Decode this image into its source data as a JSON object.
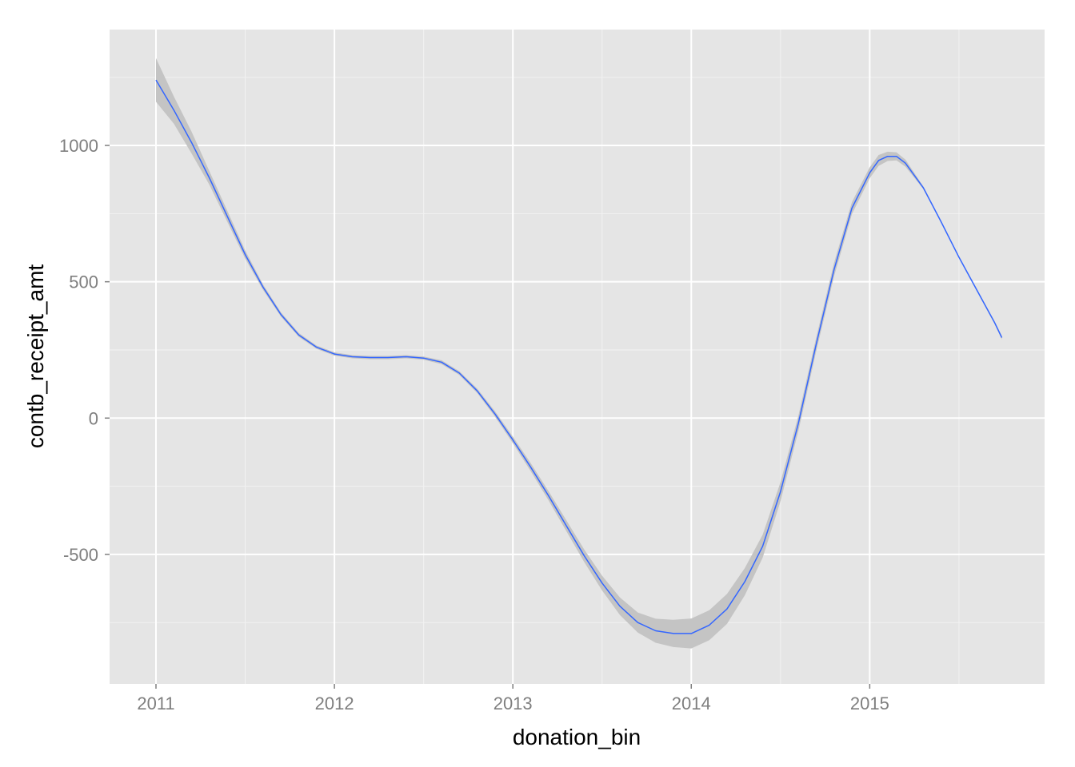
{
  "chart_data": {
    "type": "line",
    "title": "",
    "xlabel": "donation_bin",
    "ylabel": "contb_receipt_amt",
    "xlim": [
      2010.74,
      2015.98
    ],
    "ylim": [
      -975,
      1425
    ],
    "x_ticks": [
      2011,
      2012,
      2013,
      2014,
      2015
    ],
    "y_ticks": [
      -500,
      0,
      500,
      1000
    ],
    "x_tick_labels": [
      "2011",
      "2012",
      "2013",
      "2014",
      "2015"
    ],
    "y_tick_labels": [
      "-500",
      "0",
      "500",
      "1000"
    ],
    "grid": true,
    "legend": "none",
    "colors": {
      "panel_background": "#e5e5e5",
      "grid_major": "#ffffff",
      "grid_minor": "#f2f2f2",
      "line": "#3366ff",
      "ribbon": "#c4c4c4",
      "tick_mark": "#7f7f7f"
    },
    "series": [
      {
        "x": [
          2011.0,
          2011.1,
          2011.2,
          2011.3,
          2011.4,
          2011.5,
          2011.6,
          2011.7,
          2011.8,
          2011.9,
          2012.0,
          2012.1,
          2012.2,
          2012.3,
          2012.4,
          2012.5,
          2012.6,
          2012.7,
          2012.8,
          2012.9,
          2013.0,
          2013.1,
          2013.2,
          2013.3,
          2013.4,
          2013.5,
          2013.6,
          2013.7,
          2013.8,
          2013.9,
          2014.0,
          2014.1,
          2014.2,
          2014.3,
          2014.4,
          2014.5,
          2014.6,
          2014.7,
          2014.8,
          2014.9,
          2015.0,
          2015.05,
          2015.1,
          2015.15,
          2015.2,
          2015.3,
          2015.4,
          2015.5,
          2015.6,
          2015.7,
          2015.74
        ],
        "y": [
          1240,
          1130,
          1010,
          880,
          740,
          600,
          480,
          380,
          305,
          260,
          235,
          225,
          222,
          222,
          225,
          220,
          205,
          165,
          100,
          15,
          -80,
          -180,
          -285,
          -395,
          -505,
          -605,
          -690,
          -750,
          -780,
          -790,
          -790,
          -760,
          -700,
          -600,
          -470,
          -270,
          -20,
          270,
          545,
          770,
          900,
          945,
          960,
          960,
          935,
          845,
          720,
          590,
          470,
          350,
          295
        ],
        "lower": [
          1160,
          1080,
          970,
          855,
          720,
          585,
          470,
          372,
          298,
          254,
          229,
          219,
          216,
          216,
          219,
          214,
          198,
          158,
          92,
          5,
          -92,
          -195,
          -302,
          -415,
          -528,
          -632,
          -722,
          -787,
          -824,
          -840,
          -845,
          -815,
          -755,
          -650,
          -512,
          -305,
          -48,
          245,
          520,
          748,
          880,
          925,
          943,
          945,
          922,
          840,
          717,
          587,
          466,
          345,
          288
        ],
        "upper": [
          1320,
          1180,
          1050,
          905,
          760,
          615,
          490,
          388,
          312,
          266,
          241,
          231,
          228,
          228,
          231,
          226,
          212,
          172,
          108,
          25,
          -68,
          -165,
          -268,
          -375,
          -482,
          -578,
          -658,
          -713,
          -736,
          -740,
          -735,
          -705,
          -645,
          -550,
          -428,
          -235,
          8,
          295,
          570,
          792,
          920,
          965,
          977,
          975,
          948,
          850,
          723,
          593,
          474,
          355,
          302
        ]
      }
    ]
  }
}
